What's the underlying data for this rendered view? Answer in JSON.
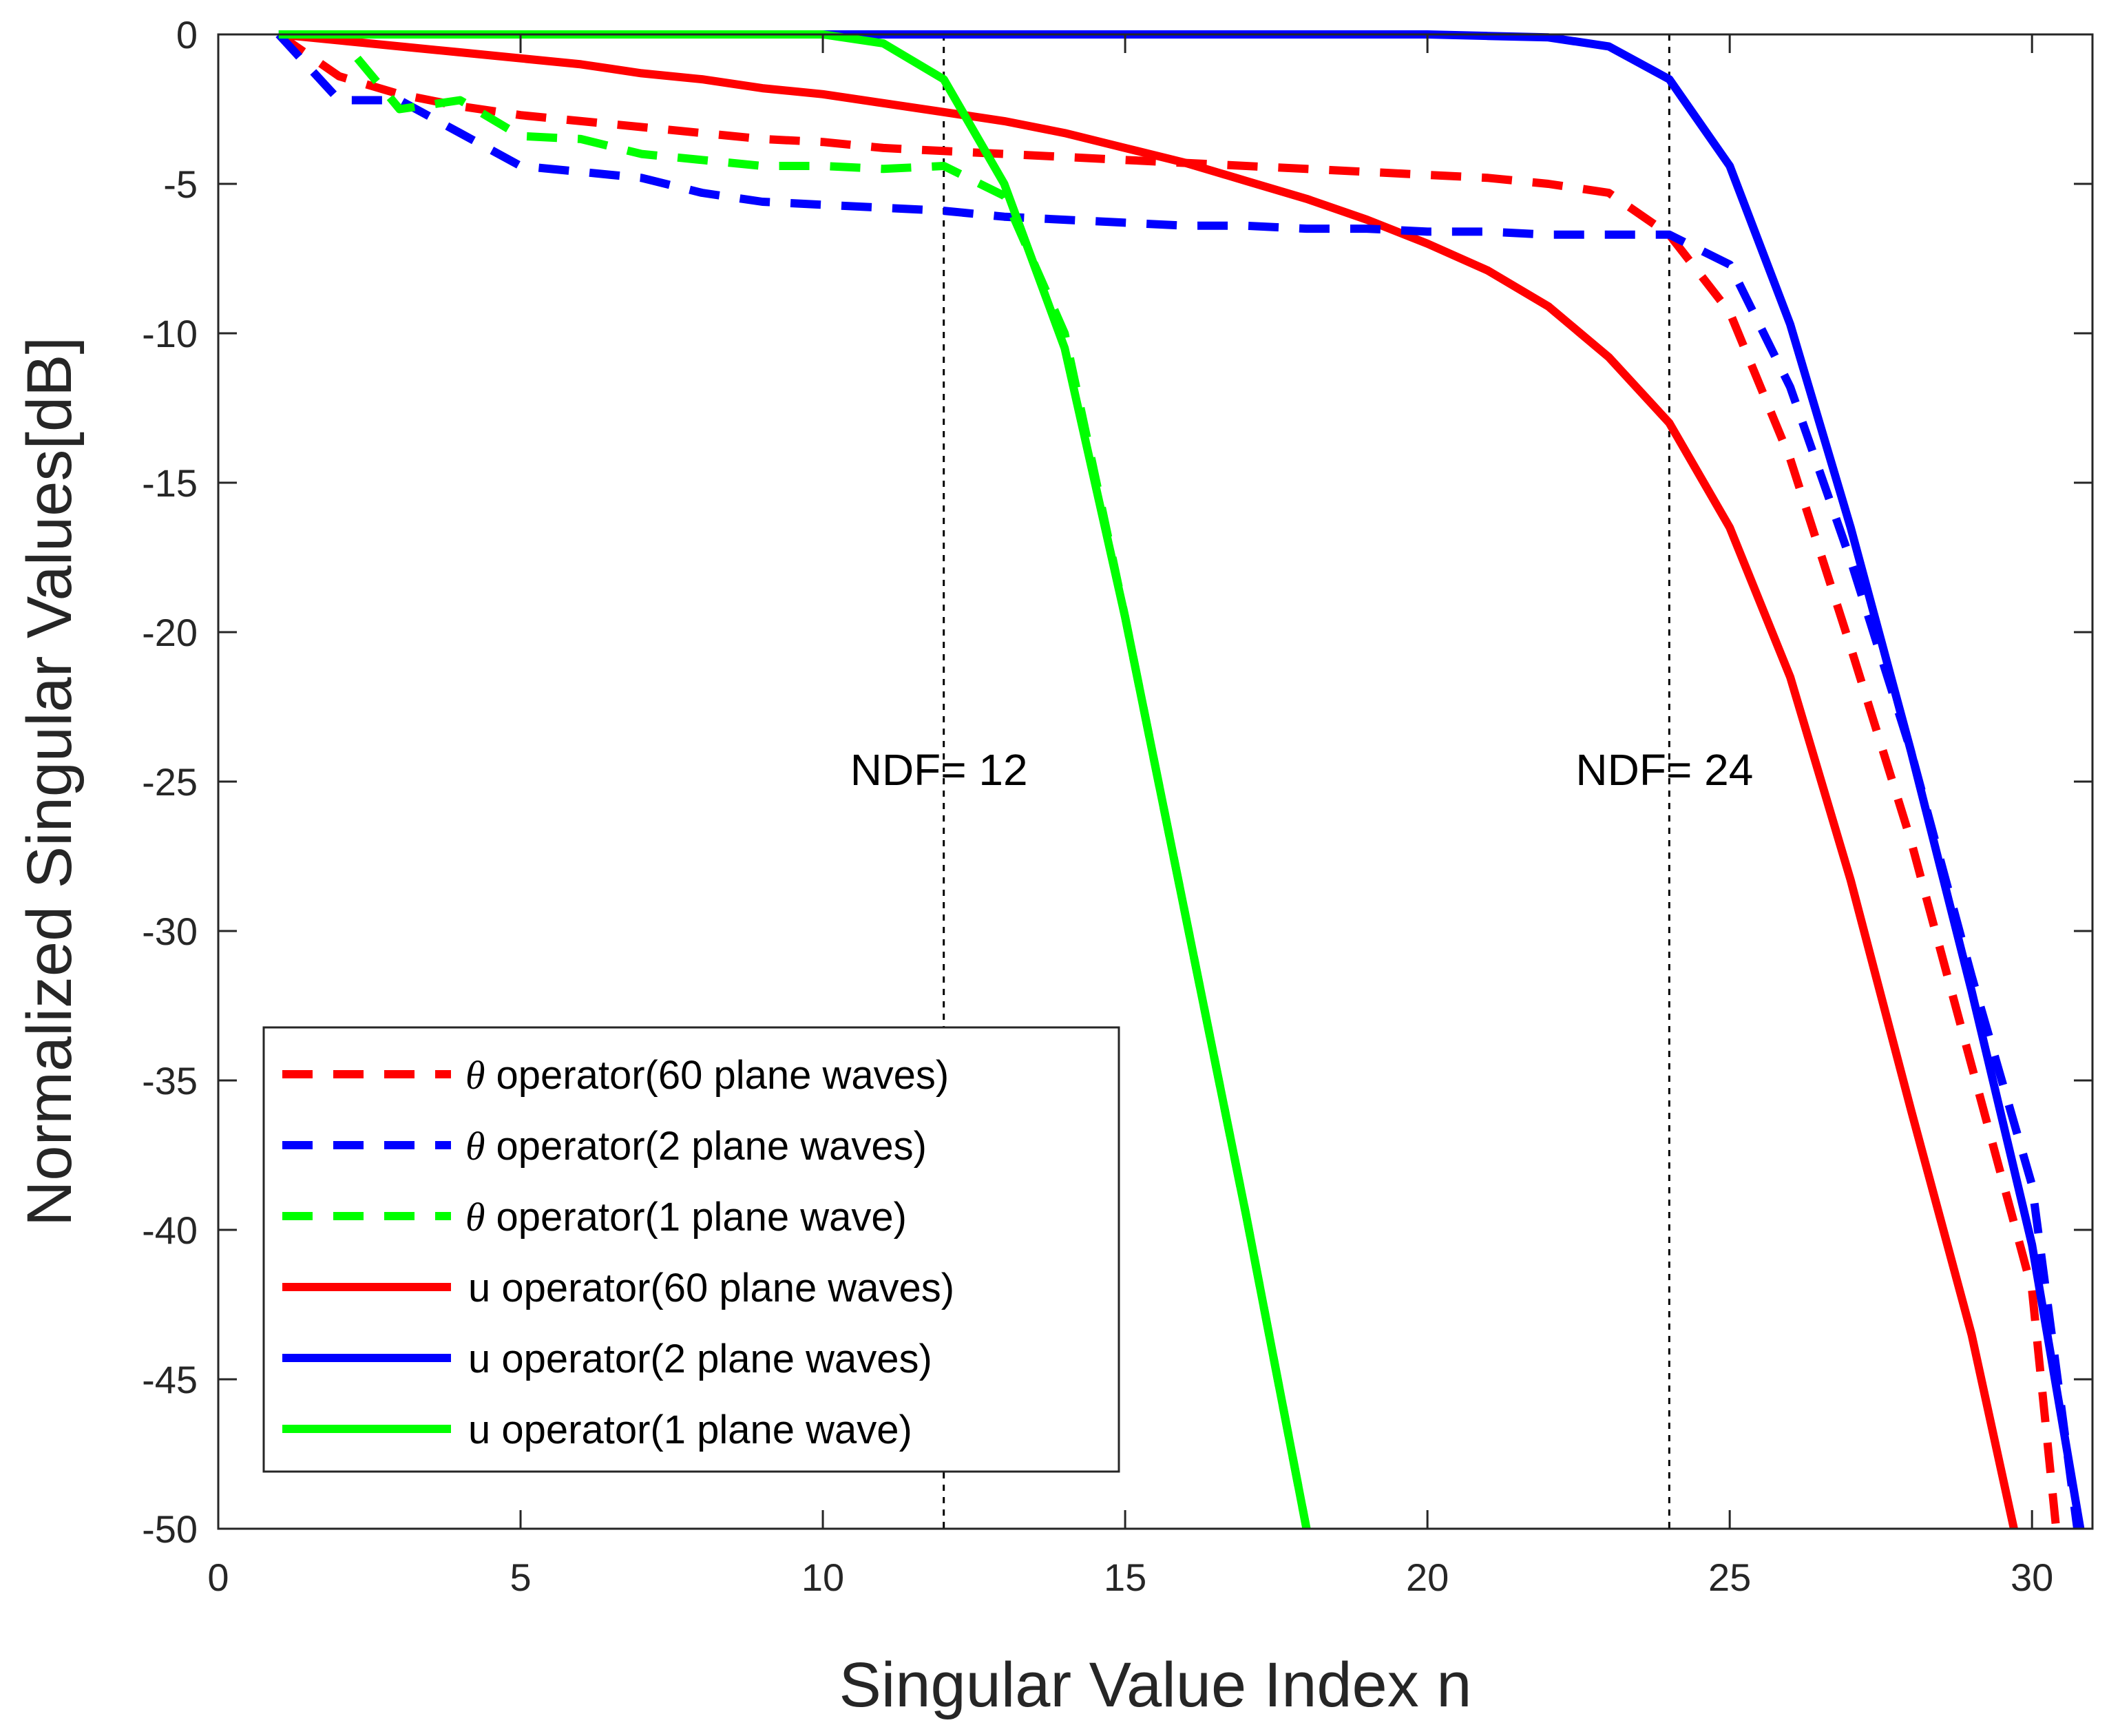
{
  "chart_data": {
    "type": "line",
    "title": "",
    "xlabel": "Singular Value Index n",
    "ylabel": "Normalized Singular Values[dB]",
    "xlim": [
      0,
      31
    ],
    "ylim": [
      -50,
      0
    ],
    "xticks": [
      0,
      5,
      10,
      15,
      20,
      25,
      30
    ],
    "yticks": [
      0,
      -5,
      -10,
      -15,
      -20,
      -25,
      -30,
      -35,
      -40,
      -45,
      -50
    ],
    "grid": false,
    "legend_position": "lower-left",
    "annotations": [
      {
        "text": "NDF= 12",
        "x": 12
      },
      {
        "text": "NDF= 24",
        "x": 24
      }
    ],
    "series": [
      {
        "name_symbol": "θ",
        "name": "operator(60 plane waves)",
        "color": "#ff0000",
        "style": "dashed",
        "x": [
          1,
          2,
          3,
          4,
          5,
          6,
          7,
          8,
          9,
          10,
          11,
          12,
          13,
          14,
          15,
          16,
          17,
          18,
          19,
          20,
          21,
          22,
          23,
          24,
          25,
          26,
          27,
          28,
          29,
          30,
          30.4
        ],
        "y": [
          0,
          -1.4,
          -2.0,
          -2.4,
          -2.7,
          -2.9,
          -3.1,
          -3.3,
          -3.5,
          -3.6,
          -3.8,
          -3.9,
          -4.0,
          -4.1,
          -4.2,
          -4.3,
          -4.4,
          -4.5,
          -4.6,
          -4.7,
          -4.8,
          -5.0,
          -5.3,
          -6.7,
          -9.3,
          -14.2,
          -20.5,
          -27.0,
          -34.5,
          -42.0,
          -50
        ]
      },
      {
        "name_symbol": "θ",
        "name": "operator(2 plane waves)",
        "color": "#0000ff",
        "style": "dashed",
        "x": [
          1,
          2,
          3,
          4,
          5,
          6,
          7,
          8,
          9,
          10,
          11,
          12,
          13,
          14,
          15,
          16,
          17,
          18,
          19,
          20,
          21,
          22,
          23,
          24,
          25,
          26,
          27,
          28,
          29,
          30,
          30.75
        ],
        "y": [
          0,
          -2.2,
          -2.2,
          -3.3,
          -4.4,
          -4.6,
          -4.8,
          -5.3,
          -5.6,
          -5.7,
          -5.8,
          -5.9,
          -6.1,
          -6.2,
          -6.3,
          -6.4,
          -6.4,
          -6.5,
          -6.5,
          -6.6,
          -6.6,
          -6.7,
          -6.7,
          -6.7,
          -7.7,
          -11.8,
          -17.6,
          -24.0,
          -31.5,
          -38.5,
          -50
        ]
      },
      {
        "name_symbol": "θ",
        "name": "operator(1 plane wave)",
        "color": "#00ff00",
        "style": "dashed",
        "x": [
          2.3,
          3,
          4,
          5,
          6,
          7,
          8,
          9,
          10,
          11,
          12,
          13,
          14,
          15,
          16,
          17,
          18
        ],
        "y": [
          -0.8,
          -2.5,
          -2.2,
          -3.4,
          -3.5,
          -4.0,
          -4.2,
          -4.4,
          -4.4,
          -4.5,
          -4.4,
          -5.4,
          -10.0,
          -19.5,
          -29.5,
          -39.5,
          -50
        ]
      },
      {
        "name_symbol": "",
        "name": "u operator(60 plane waves)",
        "color": "#ff0000",
        "style": "solid",
        "x": [
          1,
          2,
          3,
          4,
          5,
          6,
          7,
          8,
          9,
          10,
          11,
          12,
          13,
          14,
          15,
          16,
          17,
          18,
          19,
          20,
          21,
          22,
          23,
          24,
          25,
          26,
          27,
          28,
          29,
          29.7
        ],
        "y": [
          0,
          -0.2,
          -0.4,
          -0.6,
          -0.8,
          -1.0,
          -1.3,
          -1.5,
          -1.8,
          -2.0,
          -2.3,
          -2.6,
          -2.9,
          -3.3,
          -3.8,
          -4.3,
          -4.9,
          -5.5,
          -6.2,
          -7.0,
          -7.9,
          -9.1,
          -10.8,
          -13.0,
          -16.5,
          -21.5,
          -28.3,
          -36.0,
          -43.5,
          -50
        ]
      },
      {
        "name_symbol": "",
        "name": "u operator(2 plane waves)",
        "color": "#0000ff",
        "style": "solid",
        "x": [
          1,
          5,
          10,
          15,
          20,
          21,
          22,
          23,
          24,
          25,
          26,
          27,
          28,
          29,
          30,
          30.8
        ],
        "y": [
          0,
          0,
          0,
          0,
          0,
          -0.05,
          -0.1,
          -0.4,
          -1.5,
          -4.4,
          -9.7,
          -16.5,
          -24.0,
          -32.0,
          -40.5,
          -50
        ]
      },
      {
        "name_symbol": "",
        "name": "u operator(1 plane wave)",
        "color": "#00ff00",
        "style": "solid",
        "x": [
          1,
          5,
          10,
          11,
          12,
          13,
          14,
          15,
          16,
          17,
          18
        ],
        "y": [
          0,
          0,
          0,
          -0.3,
          -1.5,
          -5.0,
          -10.5,
          -19.5,
          -29.5,
          -39.5,
          -50
        ]
      }
    ]
  }
}
